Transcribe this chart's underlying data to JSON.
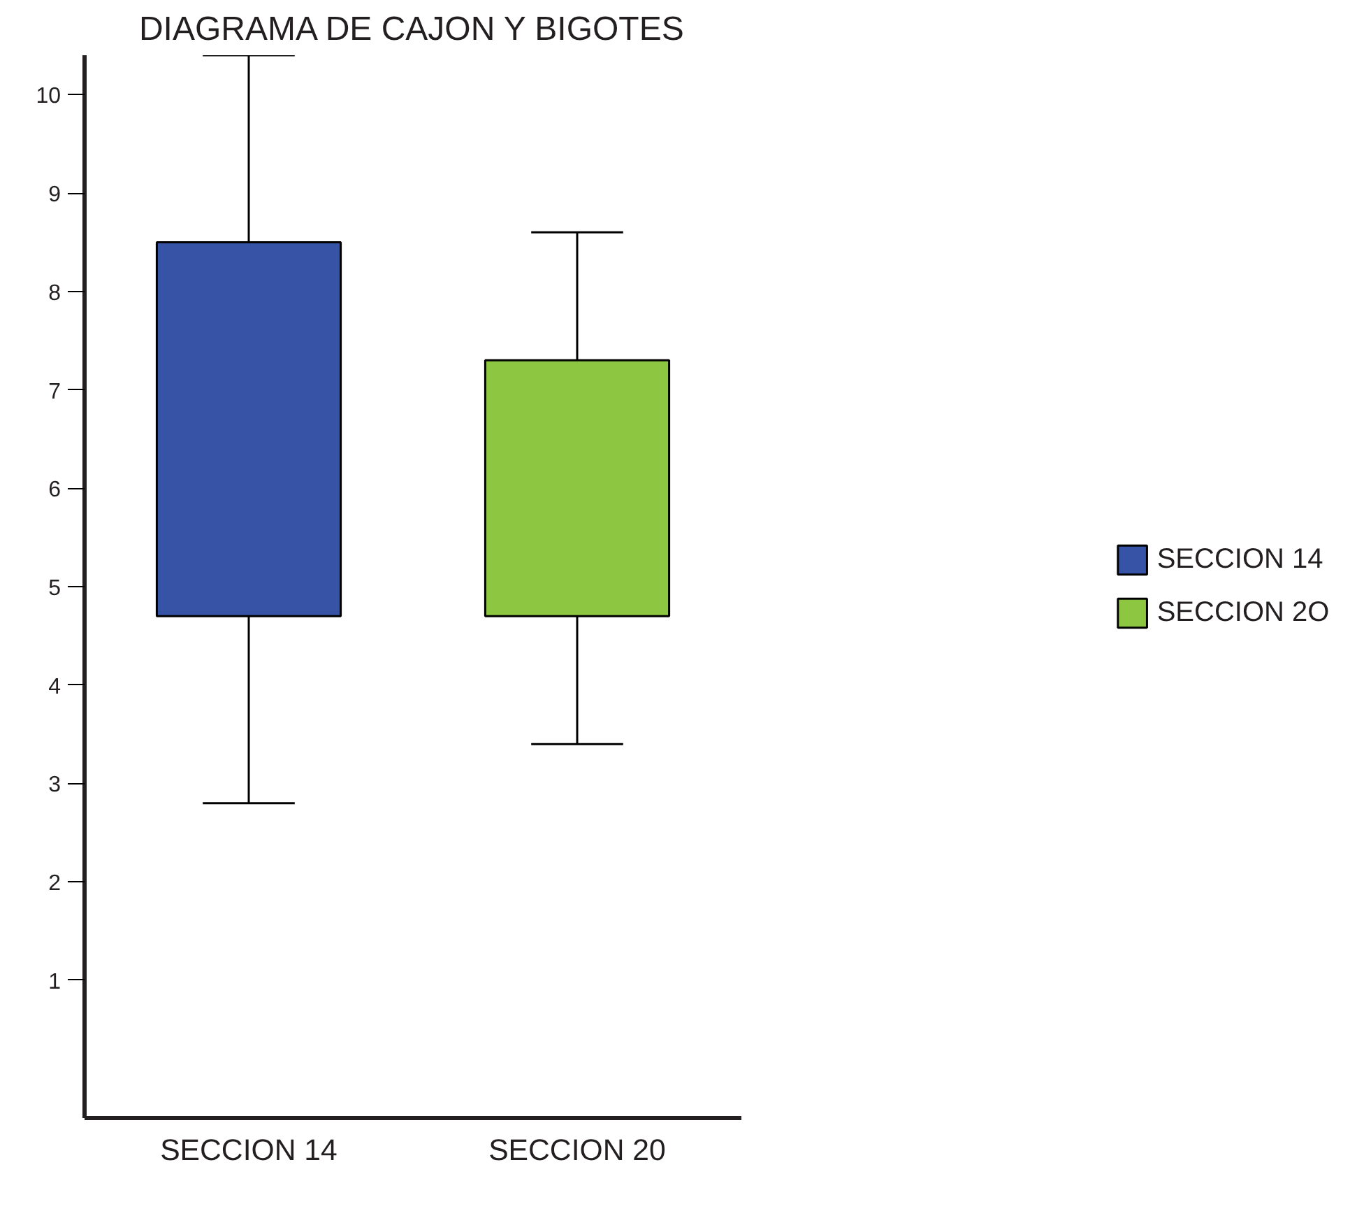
{
  "chart_data": {
    "type": "box",
    "title": "DIAGRAMA DE CAJON Y BIGOTES",
    "categories": [
      "SECCION 14",
      "SECCION 20"
    ],
    "series": [
      {
        "name": "SECCION 14",
        "color": "#3653a5",
        "boxes": [
          {
            "low": 2.8,
            "q1": 4.7,
            "q3": 8.5,
            "high": 10.4
          },
          null
        ]
      },
      {
        "name": "SECCION 2O",
        "color": "#8dc641",
        "boxes": [
          null,
          {
            "low": 3.4,
            "q1": 4.7,
            "q3": 7.3,
            "high": 8.6
          }
        ]
      }
    ],
    "ylim": [
      -0.4,
      10.4
    ],
    "yticks": [
      1,
      2,
      3,
      4,
      5,
      6,
      7,
      8,
      9,
      10
    ],
    "grid": false,
    "legend": "right"
  }
}
